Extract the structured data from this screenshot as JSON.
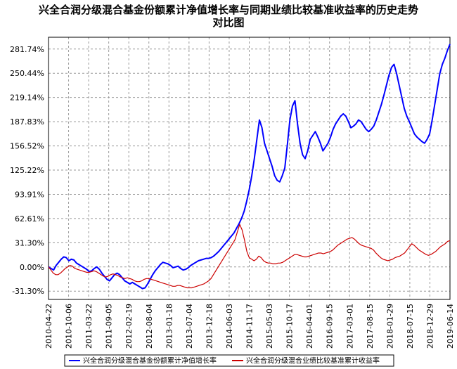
{
  "chart_data": {
    "type": "line",
    "title": "兴全合润分级混合基金份额累计净值增长率与同期业绩比较基准收益率的历史走势",
    "title_line2": "对比图",
    "x_tick_labels": [
      "2010-04-22",
      "2010-10-06",
      "2011-03-22",
      "2011-09-05",
      "2012-02-19",
      "2012-08-04",
      "2013-01-18",
      "2013-07-04",
      "2013-12-18",
      "2014-06-03",
      "2014-11-17",
      "2015-05-03",
      "2015-10-17",
      "2016-04-01",
      "2016-09-15",
      "2017-03-01",
      "2017-08-15",
      "2018-01-29",
      "2018-07-15",
      "2018-12-29",
      "2019-06-14"
    ],
    "y_tick_labels": [
      "281.74%",
      "250.44%",
      "219.14%",
      "187.83%",
      "156.52%",
      "125.22%",
      "93.91%",
      "62.61%",
      "31.30%",
      "0.00%",
      "-31.30%"
    ],
    "y_ticks": [
      281.74,
      250.44,
      219.14,
      187.83,
      156.52,
      125.22,
      93.91,
      62.61,
      31.3,
      0.0,
      -31.3
    ],
    "ylim": [
      -42,
      297
    ],
    "grid": true,
    "legend_position": "bottom",
    "series": [
      {
        "name": "兴全合润分级混合基金份额累计净值增长率",
        "color": "#0000ff",
        "values": [
          0,
          -2,
          -4,
          2,
          6,
          10,
          13,
          12,
          8,
          10,
          9,
          5,
          3,
          1,
          -1,
          -3,
          -6,
          -5,
          -2,
          0,
          -3,
          -8,
          -12,
          -16,
          -18,
          -14,
          -10,
          -8,
          -10,
          -14,
          -18,
          -20,
          -22,
          -20,
          -22,
          -24,
          -26,
          -28,
          -27,
          -22,
          -16,
          -10,
          -5,
          -1,
          3,
          6,
          5,
          4,
          2,
          -1,
          0,
          1,
          -2,
          -4,
          -3,
          -1,
          2,
          4,
          6,
          8,
          9,
          10,
          11,
          11,
          12,
          14,
          17,
          20,
          24,
          28,
          32,
          36,
          40,
          44,
          50,
          56,
          63,
          72,
          85,
          100,
          118,
          140,
          165,
          190,
          180,
          160,
          150,
          140,
          130,
          118,
          112,
          110,
          118,
          128,
          158,
          190,
          208,
          215,
          185,
          160,
          145,
          140,
          150,
          165,
          170,
          175,
          168,
          160,
          150,
          155,
          160,
          168,
          178,
          185,
          190,
          195,
          198,
          195,
          188,
          180,
          182,
          185,
          190,
          188,
          183,
          178,
          175,
          178,
          182,
          190,
          200,
          210,
          222,
          235,
          248,
          258,
          262,
          250,
          235,
          220,
          205,
          195,
          188,
          180,
          172,
          168,
          165,
          162,
          160,
          165,
          172,
          190,
          210,
          230,
          250,
          262,
          270,
          280,
          288
        ]
      },
      {
        "name": "兴全合润分级混合业绩比较基准累计收益率",
        "color": "#cc0000",
        "values": [
          0,
          -4,
          -8,
          -10,
          -10,
          -8,
          -5,
          -2,
          0,
          2,
          1,
          -2,
          -3,
          -4,
          -5,
          -6,
          -7,
          -7,
          -6,
          -5,
          -6,
          -8,
          -10,
          -12,
          -13,
          -12,
          -10,
          -9,
          -10,
          -11,
          -13,
          -14,
          -15,
          -14,
          -15,
          -16,
          -18,
          -19,
          -19,
          -18,
          -16,
          -15,
          -15,
          -16,
          -17,
          -18,
          -19,
          -20,
          -21,
          -22,
          -23,
          -24,
          -25,
          -25,
          -24,
          -24,
          -25,
          -26,
          -27,
          -27,
          -27,
          -26,
          -25,
          -24,
          -23,
          -22,
          -20,
          -18,
          -15,
          -10,
          -5,
          0,
          5,
          10,
          15,
          20,
          25,
          30,
          35,
          45,
          55,
          48,
          35,
          20,
          12,
          10,
          8,
          10,
          14,
          12,
          8,
          6,
          5,
          5,
          4,
          4,
          5,
          5,
          6,
          8,
          10,
          12,
          14,
          16,
          16,
          15,
          14,
          13,
          13,
          14,
          15,
          16,
          17,
          18,
          18,
          17,
          18,
          19,
          20,
          22,
          25,
          28,
          30,
          32,
          34,
          36,
          37,
          38,
          36,
          33,
          30,
          28,
          27,
          26,
          25,
          24,
          22,
          18,
          15,
          12,
          10,
          9,
          8,
          9,
          10,
          12,
          13,
          14,
          16,
          18,
          22,
          26,
          30,
          28,
          25,
          22,
          20,
          18,
          16,
          15,
          16,
          18,
          20,
          23,
          26,
          28,
          30,
          33,
          34
        ]
      }
    ]
  }
}
